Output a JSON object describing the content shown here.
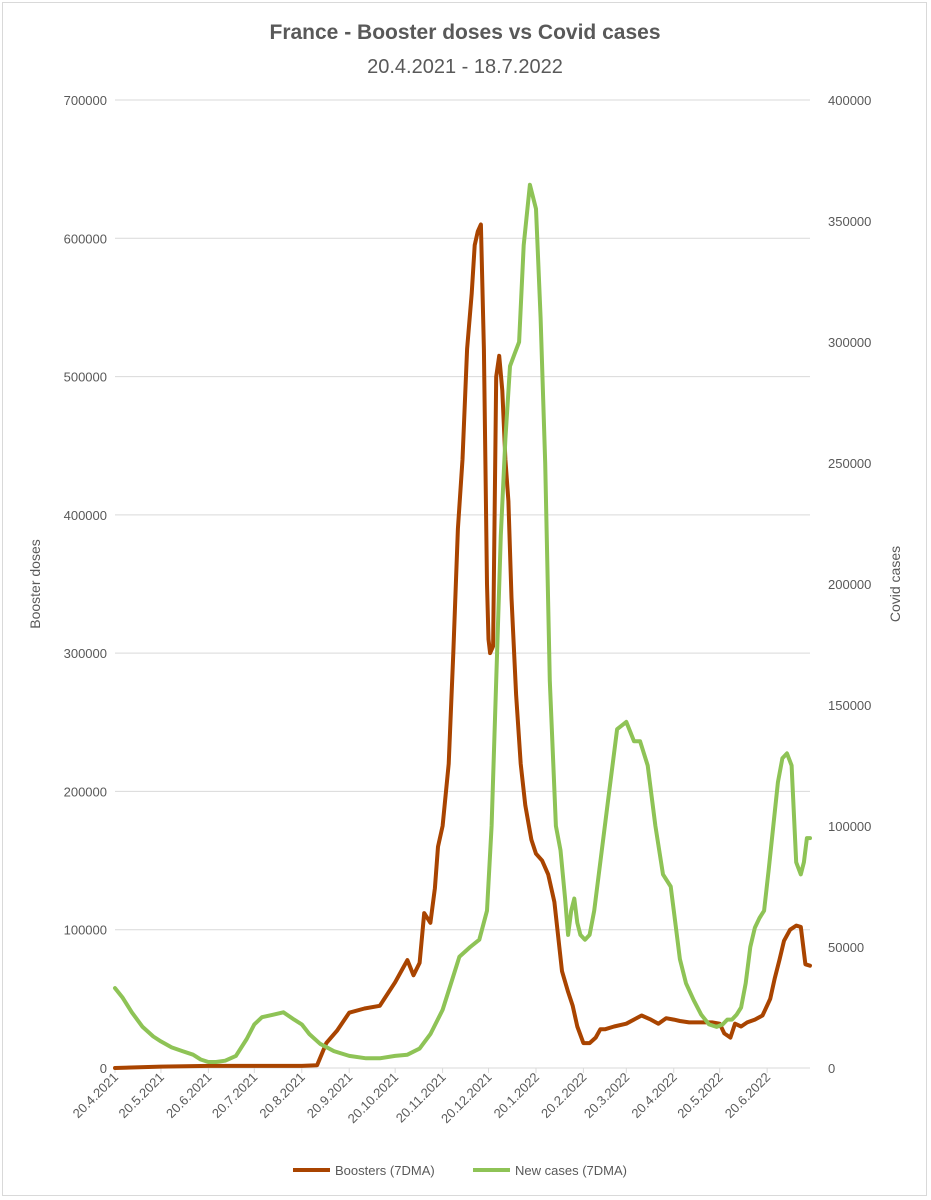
{
  "chart_data": {
    "type": "line",
    "title": "France - Booster doses vs Covid cases",
    "subtitle": "20.4.2021 - 18.7.2022",
    "ylabel_left": "Booster doses",
    "ylabel_right": "Covid cases",
    "ylim_left": [
      0,
      700000
    ],
    "ylim_right": [
      0,
      400000
    ],
    "yticks_left": [
      "0",
      "100000",
      "200000",
      "300000",
      "400000",
      "500000",
      "600000",
      "700000"
    ],
    "yticks_right": [
      "0",
      "50000",
      "100000",
      "150000",
      "200000",
      "250000",
      "300000",
      "350000",
      "400000"
    ],
    "xlim": [
      "2021-04-20",
      "2022-07-18"
    ],
    "xticks": [
      "20.4.2021",
      "20.5.2021",
      "20.6.2021",
      "20.7.2021",
      "20.8.2021",
      "20.9.2021",
      "20.10.2021",
      "20.11.2021",
      "20.12.2021",
      "20.1.2022",
      "20.2.2022",
      "20.3.2022",
      "20.4.2022",
      "20.5.2022",
      "20.6.2022"
    ],
    "xtick_dates": [
      "2021-04-20",
      "2021-05-20",
      "2021-06-20",
      "2021-07-20",
      "2021-08-20",
      "2021-09-20",
      "2021-10-20",
      "2021-11-20",
      "2021-12-20",
      "2022-01-20",
      "2022-02-20",
      "2022-03-20",
      "2022-04-20",
      "2022-05-20",
      "2022-06-20"
    ],
    "grid": true,
    "legend": "bottom",
    "series": [
      {
        "name": "Boosters (7DMA)",
        "axis": "left",
        "color": "#a94400",
        "x": [
          "2021-04-20",
          "2021-05-20",
          "2021-06-20",
          "2021-07-20",
          "2021-08-20",
          "2021-08-30",
          "2021-09-05",
          "2021-09-12",
          "2021-09-20",
          "2021-09-30",
          "2021-10-10",
          "2021-10-20",
          "2021-10-25",
          "2021-10-28",
          "2021-11-01",
          "2021-11-05",
          "2021-11-08",
          "2021-11-12",
          "2021-11-15",
          "2021-11-17",
          "2021-11-20",
          "2021-11-24",
          "2021-11-27",
          "2021-11-30",
          "2021-12-03",
          "2021-12-06",
          "2021-12-09",
          "2021-12-11",
          "2021-12-13",
          "2021-12-15",
          "2021-12-17",
          "2021-12-19",
          "2021-12-20",
          "2021-12-21",
          "2021-12-23",
          "2021-12-25",
          "2021-12-27",
          "2021-12-29",
          "2021-12-31",
          "2022-01-02",
          "2022-01-04",
          "2022-01-07",
          "2022-01-10",
          "2022-01-13",
          "2022-01-17",
          "2022-01-20",
          "2022-01-24",
          "2022-01-28",
          "2022-02-01",
          "2022-02-06",
          "2022-02-10",
          "2022-02-13",
          "2022-02-16",
          "2022-02-20",
          "2022-02-24",
          "2022-02-28",
          "2022-03-03",
          "2022-03-06",
          "2022-03-12",
          "2022-03-20",
          "2022-03-30",
          "2022-04-05",
          "2022-04-10",
          "2022-04-15",
          "2022-04-20",
          "2022-04-24",
          "2022-04-30",
          "2022-05-05",
          "2022-05-10",
          "2022-05-15",
          "2022-05-20",
          "2022-05-23",
          "2022-05-27",
          "2022-05-30",
          "2022-06-03",
          "2022-06-07",
          "2022-06-12",
          "2022-06-17",
          "2022-06-22",
          "2022-06-25",
          "2022-06-28",
          "2022-07-01",
          "2022-07-05",
          "2022-07-09",
          "2022-07-12",
          "2022-07-15",
          "2022-07-18"
        ],
        "values": [
          0,
          1000,
          1500,
          1500,
          1500,
          2000,
          18000,
          27000,
          40000,
          43000,
          45000,
          62000,
          72000,
          78000,
          67000,
          76000,
          112000,
          105000,
          130000,
          160000,
          175000,
          220000,
          300000,
          390000,
          440000,
          520000,
          560000,
          595000,
          605000,
          610000,
          520000,
          350000,
          310000,
          300000,
          305000,
          500000,
          515000,
          490000,
          440000,
          410000,
          340000,
          270000,
          220000,
          190000,
          165000,
          155000,
          150000,
          140000,
          120000,
          70000,
          55000,
          45000,
          30000,
          18000,
          18000,
          22000,
          28000,
          28000,
          30000,
          32000,
          38000,
          35000,
          32000,
          36000,
          35000,
          34000,
          33000,
          33000,
          33000,
          33000,
          32000,
          25000,
          22000,
          32000,
          30000,
          33000,
          35000,
          38000,
          50000,
          65000,
          78000,
          92000,
          100000,
          103000,
          102000,
          75000,
          74000
        ]
      },
      {
        "name": "New cases (7DMA)",
        "axis": "right",
        "color": "#8ec356",
        "x": [
          "2021-04-20",
          "2021-04-25",
          "2021-05-01",
          "2021-05-08",
          "2021-05-15",
          "2021-05-20",
          "2021-05-27",
          "2021-06-03",
          "2021-06-10",
          "2021-06-15",
          "2021-06-20",
          "2021-06-25",
          "2021-07-01",
          "2021-07-08",
          "2021-07-15",
          "2021-07-20",
          "2021-07-25",
          "2021-08-01",
          "2021-08-08",
          "2021-08-15",
          "2021-08-20",
          "2021-08-25",
          "2021-09-01",
          "2021-09-10",
          "2021-09-20",
          "2021-10-01",
          "2021-10-10",
          "2021-10-20",
          "2021-10-28",
          "2021-11-05",
          "2021-11-12",
          "2021-11-20",
          "2021-11-26",
          "2021-12-01",
          "2021-12-08",
          "2021-12-14",
          "2021-12-19",
          "2021-12-22",
          "2021-12-25",
          "2021-12-28",
          "2021-12-31",
          "2022-01-03",
          "2022-01-06",
          "2022-01-09",
          "2022-01-12",
          "2022-01-16",
          "2022-01-20",
          "2022-01-23",
          "2022-01-26",
          "2022-01-29",
          "2022-02-02",
          "2022-02-05",
          "2022-02-08",
          "2022-02-10",
          "2022-02-12",
          "2022-02-14",
          "2022-02-16",
          "2022-02-18",
          "2022-02-21",
          "2022-02-24",
          "2022-02-27",
          "2022-03-03",
          "2022-03-08",
          "2022-03-14",
          "2022-03-20",
          "2022-03-25",
          "2022-03-29",
          "2022-04-03",
          "2022-04-08",
          "2022-04-13",
          "2022-04-18",
          "2022-04-20",
          "2022-04-24",
          "2022-04-28",
          "2022-05-03",
          "2022-05-08",
          "2022-05-13",
          "2022-05-18",
          "2022-05-22",
          "2022-05-25",
          "2022-05-28",
          "2022-05-31",
          "2022-06-03",
          "2022-06-06",
          "2022-06-09",
          "2022-06-12",
          "2022-06-15",
          "2022-06-18",
          "2022-06-21",
          "2022-06-24",
          "2022-06-27",
          "2022-06-30",
          "2022-07-03",
          "2022-07-06",
          "2022-07-09",
          "2022-07-12",
          "2022-07-14",
          "2022-07-16",
          "2022-07-18"
        ],
        "values": [
          33000,
          29000,
          23000,
          17000,
          13000,
          11000,
          8500,
          7000,
          5500,
          3500,
          2500,
          2500,
          3000,
          5000,
          12000,
          18000,
          21000,
          22000,
          23000,
          20000,
          18000,
          14000,
          10000,
          7000,
          5000,
          4000,
          4000,
          5000,
          5500,
          8000,
          14000,
          24000,
          36000,
          46000,
          50000,
          53000,
          65000,
          100000,
          160000,
          220000,
          260000,
          290000,
          295000,
          300000,
          340000,
          365000,
          355000,
          310000,
          250000,
          160000,
          100000,
          90000,
          70000,
          55000,
          65000,
          70000,
          60000,
          55000,
          53000,
          55000,
          65000,
          85000,
          110000,
          140000,
          143000,
          135000,
          135000,
          125000,
          100000,
          80000,
          75000,
          65000,
          45000,
          35000,
          28000,
          22000,
          18000,
          17000,
          18000,
          20000,
          20000,
          22000,
          25000,
          35000,
          50000,
          58000,
          62000,
          65000,
          82000,
          100000,
          118000,
          128000,
          130000,
          125000,
          85000,
          80000,
          85000,
          95000,
          95000
        ]
      }
    ]
  }
}
